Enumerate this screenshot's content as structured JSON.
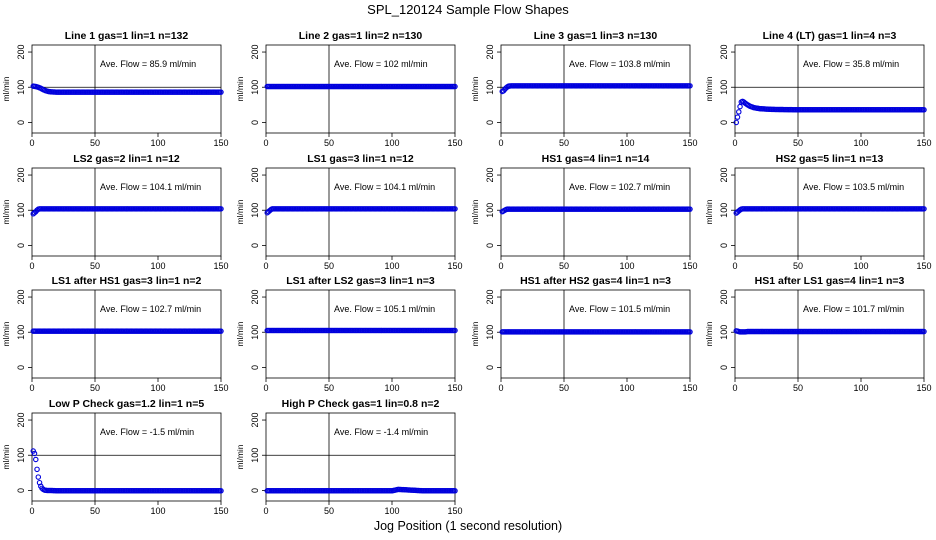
{
  "figure": {
    "title": "SPL_120124  Sample Flow Shapes",
    "xlabel": "Jog Position (1 second resolution)"
  },
  "colors": {
    "points": "#0000dd",
    "axis": "#000000"
  },
  "chart_data": [
    {
      "type": "scatter",
      "title": "Line 1 gas=1 lin=1 n=132",
      "annotation": "Ave. Flow =  85.9  ml/min",
      "ylabel": "ml/min",
      "xlim": [
        0,
        150
      ],
      "ylim": [
        -30,
        220
      ],
      "xticks": [
        0,
        50,
        100,
        150
      ],
      "yticks": [
        0,
        100,
        200
      ],
      "hline": 100,
      "vline": 50,
      "series": [
        {
          "name": "flow",
          "x": [
            1,
            3,
            5,
            7,
            9,
            11,
            13,
            15,
            20,
            30,
            50,
            75,
            100,
            125,
            150
          ],
          "y": [
            103,
            102,
            100,
            97,
            93,
            90,
            88,
            87,
            86,
            86,
            86,
            86,
            86,
            86,
            86
          ]
        }
      ]
    },
    {
      "type": "scatter",
      "title": "Line 2 gas=1 lin=2 n=130",
      "annotation": "Ave. Flow =  102  ml/min",
      "ylabel": "ml/min",
      "xlim": [
        0,
        150
      ],
      "ylim": [
        -30,
        220
      ],
      "xticks": [
        0,
        50,
        100,
        150
      ],
      "yticks": [
        0,
        100,
        200
      ],
      "hline": 100,
      "vline": 50,
      "series": [
        {
          "name": "flow",
          "x": [
            1,
            5,
            10,
            20,
            40,
            60,
            80,
            100,
            120,
            150
          ],
          "y": [
            102,
            102,
            102,
            102,
            102,
            102,
            102,
            102,
            102,
            102
          ]
        }
      ]
    },
    {
      "type": "scatter",
      "title": "Line 3 gas=1 lin=3 n=130",
      "annotation": "Ave. Flow =  103.8  ml/min",
      "ylabel": "ml/min",
      "xlim": [
        0,
        150
      ],
      "ylim": [
        -30,
        220
      ],
      "xticks": [
        0,
        50,
        100,
        150
      ],
      "yticks": [
        0,
        100,
        200
      ],
      "hline": 100,
      "vline": 50,
      "series": [
        {
          "name": "flow",
          "x": [
            1,
            2,
            3,
            4,
            5,
            6,
            8,
            10,
            20,
            40,
            60,
            80,
            100,
            120,
            150
          ],
          "y": [
            88,
            90,
            94,
            98,
            101,
            103,
            104,
            104,
            104,
            104,
            104,
            104,
            104,
            104,
            104
          ]
        }
      ]
    },
    {
      "type": "scatter",
      "title": "Line 4 (LT) gas=1 lin=4 n=3",
      "annotation": "Ave. Flow =  35.8  ml/min",
      "ylabel": "ml/min",
      "xlim": [
        0,
        150
      ],
      "ylim": [
        -30,
        220
      ],
      "xticks": [
        0,
        50,
        100,
        150
      ],
      "yticks": [
        0,
        100,
        200
      ],
      "hline": 100,
      "vline": 50,
      "series": [
        {
          "name": "flow",
          "x": [
            1,
            2,
            3,
            4,
            5,
            6,
            7,
            8,
            10,
            12,
            15,
            20,
            30,
            50,
            75,
            100,
            125,
            150
          ],
          "y": [
            0,
            15,
            30,
            45,
            58,
            60,
            58,
            55,
            50,
            46,
            42,
            39,
            37,
            36,
            36,
            36,
            36,
            36
          ]
        }
      ]
    },
    {
      "type": "scatter",
      "title": "LS2 gas=2 lin=1 n=12",
      "annotation": "Ave. Flow =  104.1  ml/min",
      "ylabel": "ml/min",
      "xlim": [
        0,
        150
      ],
      "ylim": [
        -30,
        220
      ],
      "xticks": [
        0,
        50,
        100,
        150
      ],
      "yticks": [
        0,
        100,
        200
      ],
      "hline": 100,
      "vline": 50,
      "series": [
        {
          "name": "flow",
          "x": [
            1,
            2,
            3,
            4,
            5,
            6,
            8,
            10,
            20,
            40,
            60,
            80,
            100,
            120,
            150
          ],
          "y": [
            90,
            93,
            96,
            100,
            103,
            104,
            104,
            104,
            104,
            104,
            104,
            104,
            104,
            104,
            104
          ]
        }
      ]
    },
    {
      "type": "scatter",
      "title": "LS1 gas=3 lin=1 n=12",
      "annotation": "Ave. Flow =  104.1  ml/min",
      "ylabel": "ml/min",
      "xlim": [
        0,
        150
      ],
      "ylim": [
        -30,
        220
      ],
      "xticks": [
        0,
        50,
        100,
        150
      ],
      "yticks": [
        0,
        100,
        200
      ],
      "hline": 100,
      "vline": 50,
      "series": [
        {
          "name": "flow",
          "x": [
            1,
            2,
            3,
            4,
            5,
            6,
            8,
            10,
            20,
            40,
            60,
            80,
            100,
            120,
            150
          ],
          "y": [
            93,
            96,
            99,
            102,
            104,
            104,
            104,
            104,
            104,
            104,
            104,
            104,
            104,
            104,
            104
          ]
        }
      ]
    },
    {
      "type": "scatter",
      "title": "HS1 gas=4 lin=1 n=14",
      "annotation": "Ave. Flow =  102.7  ml/min",
      "ylabel": "ml/min",
      "xlim": [
        0,
        150
      ],
      "ylim": [
        -30,
        220
      ],
      "xticks": [
        0,
        50,
        100,
        150
      ],
      "yticks": [
        0,
        100,
        200
      ],
      "hline": 100,
      "vline": 50,
      "series": [
        {
          "name": "flow",
          "x": [
            1,
            2,
            3,
            4,
            5,
            8,
            10,
            20,
            40,
            60,
            80,
            100,
            120,
            150
          ],
          "y": [
            96,
            98,
            100,
            102,
            103,
            103,
            103,
            103,
            103,
            103,
            103,
            103,
            103,
            103
          ]
        }
      ]
    },
    {
      "type": "scatter",
      "title": "HS2 gas=5 lin=1 n=13",
      "annotation": "Ave. Flow =  103.5  ml/min",
      "ylabel": "ml/min",
      "xlim": [
        0,
        150
      ],
      "ylim": [
        -30,
        220
      ],
      "xticks": [
        0,
        50,
        100,
        150
      ],
      "yticks": [
        0,
        100,
        200
      ],
      "hline": 100,
      "vline": 50,
      "series": [
        {
          "name": "flow",
          "x": [
            1,
            2,
            3,
            4,
            5,
            6,
            8,
            10,
            20,
            40,
            60,
            80,
            100,
            120,
            150
          ],
          "y": [
            92,
            95,
            98,
            101,
            103,
            104,
            104,
            104,
            104,
            104,
            104,
            104,
            104,
            104,
            104
          ]
        }
      ]
    },
    {
      "type": "scatter",
      "title": "LS1 after HS1 gas=3 lin=1 n=2",
      "annotation": "Ave. Flow =  102.7  ml/min",
      "ylabel": "ml/min",
      "xlim": [
        0,
        150
      ],
      "ylim": [
        -30,
        220
      ],
      "xticks": [
        0,
        50,
        100,
        150
      ],
      "yticks": [
        0,
        100,
        200
      ],
      "hline": 100,
      "vline": 50,
      "series": [
        {
          "name": "flow",
          "x": [
            1,
            5,
            10,
            20,
            40,
            60,
            80,
            100,
            120,
            150
          ],
          "y": [
            103,
            103,
            103,
            103,
            103,
            103,
            103,
            103,
            103,
            103
          ]
        }
      ]
    },
    {
      "type": "scatter",
      "title": "LS1 after LS2 gas=3 lin=1 n=3",
      "annotation": "Ave. Flow =  105.1  ml/min",
      "ylabel": "ml/min",
      "xlim": [
        0,
        150
      ],
      "ylim": [
        -30,
        220
      ],
      "xticks": [
        0,
        50,
        100,
        150
      ],
      "yticks": [
        0,
        100,
        200
      ],
      "hline": 100,
      "vline": 50,
      "series": [
        {
          "name": "flow",
          "x": [
            1,
            5,
            10,
            20,
            40,
            60,
            80,
            100,
            120,
            150
          ],
          "y": [
            105,
            105,
            105,
            105,
            105,
            105,
            105,
            105,
            105,
            105
          ]
        }
      ]
    },
    {
      "type": "scatter",
      "title": "HS1 after HS2 gas=4 lin=1 n=3",
      "annotation": "Ave. Flow =  101.5  ml/min",
      "ylabel": "ml/min",
      "xlim": [
        0,
        150
      ],
      "ylim": [
        -30,
        220
      ],
      "xticks": [
        0,
        50,
        100,
        150
      ],
      "yticks": [
        0,
        100,
        200
      ],
      "hline": 100,
      "vline": 50,
      "series": [
        {
          "name": "flow",
          "x": [
            1,
            5,
            10,
            20,
            40,
            60,
            80,
            100,
            120,
            150
          ],
          "y": [
            101,
            101,
            101,
            101,
            101,
            101,
            101,
            101,
            101,
            101
          ]
        }
      ]
    },
    {
      "type": "scatter",
      "title": "HS1 after LS1 gas=4 lin=1 n=3",
      "annotation": "Ave. Flow =  101.7  ml/min",
      "ylabel": "ml/min",
      "xlim": [
        0,
        150
      ],
      "ylim": [
        -30,
        220
      ],
      "xticks": [
        0,
        50,
        100,
        150
      ],
      "yticks": [
        0,
        100,
        200
      ],
      "hline": 100,
      "vline": 50,
      "series": [
        {
          "name": "flow",
          "x": [
            1,
            2,
            3,
            4,
            5,
            6,
            8,
            10,
            20,
            40,
            60,
            80,
            100,
            120,
            150
          ],
          "y": [
            104,
            103,
            102,
            101,
            101,
            101,
            101,
            102,
            102,
            102,
            102,
            102,
            102,
            102,
            102
          ]
        }
      ]
    },
    {
      "type": "scatter",
      "title": "Low P Check gas=1.2 lin=1 n=5",
      "annotation": "Ave. Flow =  -1.5  ml/min",
      "ylabel": "ml/min",
      "xlim": [
        0,
        150
      ],
      "ylim": [
        -30,
        220
      ],
      "xticks": [
        0,
        50,
        100,
        150
      ],
      "yticks": [
        0,
        100,
        200
      ],
      "hline": 100,
      "vline": 50,
      "series": [
        {
          "name": "flow",
          "x": [
            1,
            2,
            3,
            4,
            5,
            6,
            7,
            8,
            9,
            10,
            12,
            15,
            20,
            30,
            50,
            75,
            100,
            125,
            150
          ],
          "y": [
            112,
            105,
            88,
            60,
            38,
            22,
            12,
            6,
            3,
            1,
            0,
            0,
            -1,
            -1,
            -1,
            -1,
            -1,
            -1,
            -1
          ]
        }
      ]
    },
    {
      "type": "scatter",
      "title": "High P Check gas=1 lin=0.8 n=2",
      "annotation": "Ave. Flow =  -1.4  ml/min",
      "ylabel": "ml/min",
      "xlim": [
        0,
        150
      ],
      "ylim": [
        -30,
        220
      ],
      "xticks": [
        0,
        50,
        100,
        150
      ],
      "yticks": [
        0,
        100,
        200
      ],
      "hline": 100,
      "vline": 50,
      "series": [
        {
          "name": "flow",
          "x": [
            1,
            10,
            25,
            50,
            75,
            100,
            105,
            125,
            150
          ],
          "y": [
            -1,
            -1,
            -1,
            -1,
            -1,
            -1,
            3,
            -1,
            -1
          ]
        }
      ]
    }
  ]
}
